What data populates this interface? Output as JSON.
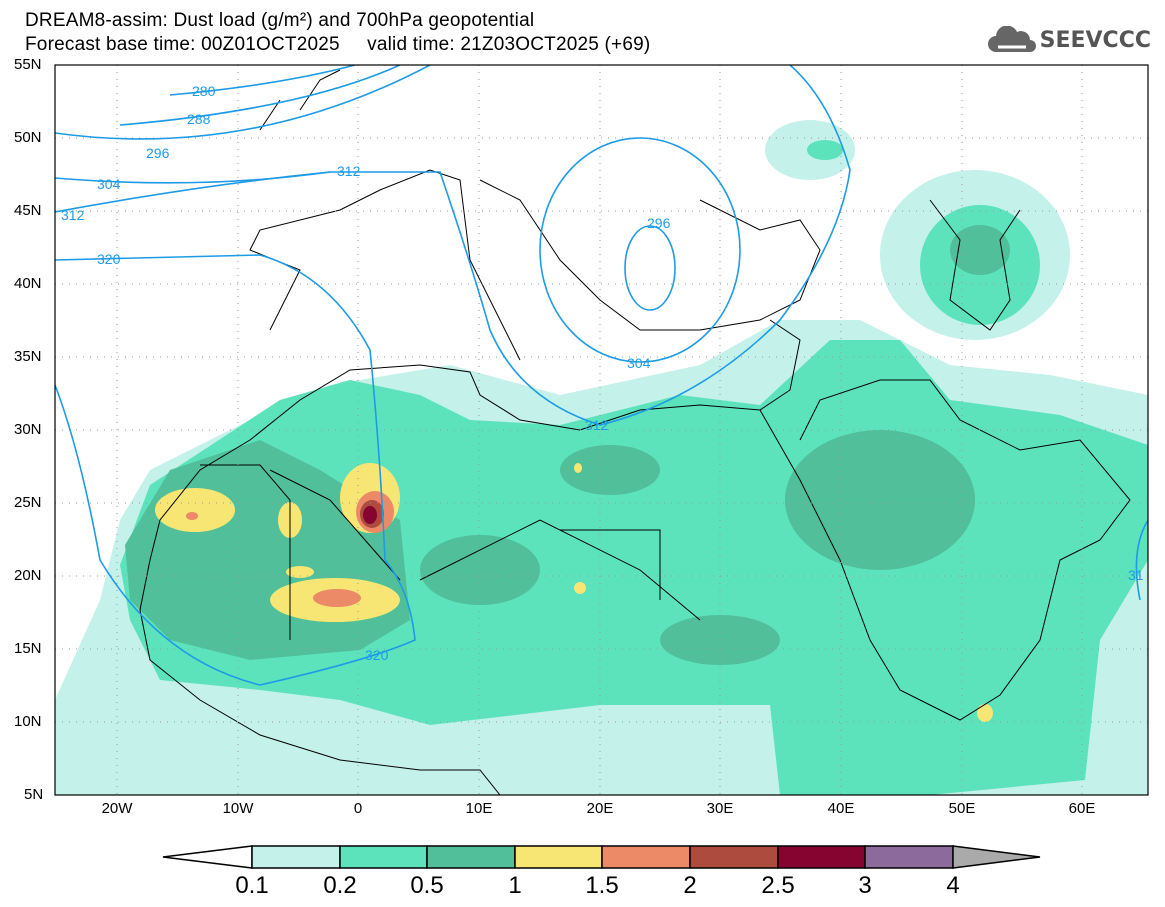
{
  "header": {
    "title_line1": "DREAM8-assim: Dust load (g/m²) and 700hPa geopotential",
    "title_line2": "Forecast base time: 00Z01OCT2025     valid time: 21Z03OCT2025 (+69)",
    "logo_text": "SEEVCCC",
    "logo_icon": "cloud-icon"
  },
  "axes": {
    "lat_labels": [
      "55N",
      "50N",
      "45N",
      "40N",
      "35N",
      "30N",
      "25N",
      "20N",
      "15N",
      "10N",
      "5N"
    ],
    "lon_labels": [
      "20W",
      "10W",
      "0",
      "10E",
      "20E",
      "30E",
      "40E",
      "50E",
      "60E"
    ]
  },
  "contours": {
    "color": "#1e9be6",
    "labels": [
      "280",
      "288",
      "296",
      "304",
      "312",
      "320",
      "296",
      "304",
      "312",
      "320",
      "31"
    ]
  },
  "colorbar": {
    "ticks": [
      "0.1",
      "0.2",
      "0.5",
      "1",
      "1.5",
      "2",
      "2.5",
      "3",
      "4"
    ],
    "colors": [
      "#ffffff",
      "#c4f1e9",
      "#5de3bb",
      "#50bf9a",
      "#f7e674",
      "#ec8967",
      "#ad4b3f",
      "#850530",
      "#8d6a9c",
      "#aaaaaa"
    ]
  }
}
